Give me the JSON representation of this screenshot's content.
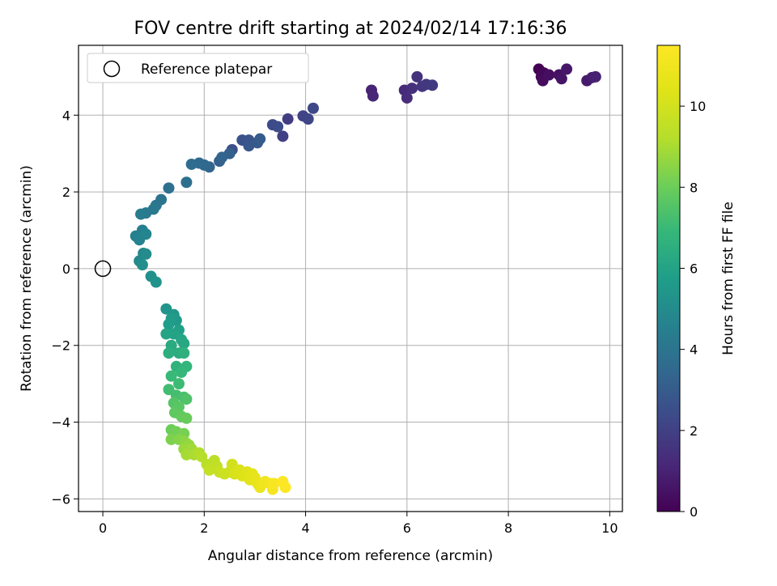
{
  "chart_data": {
    "type": "scatter",
    "title": "FOV centre drift starting at 2024/02/14 17:16:36",
    "xlabel": "Angular distance from reference (arcmin)",
    "ylabel": "Rotation from reference (arcmin)",
    "xlim": [
      -0.48,
      10.25
    ],
    "ylim": [
      -6.33,
      5.82
    ],
    "xticks": [
      0,
      2,
      4,
      6,
      8,
      10
    ],
    "yticks": [
      -6,
      -4,
      -2,
      0,
      2,
      4
    ],
    "grid": true,
    "legend": {
      "placement": "top-left",
      "entries": [
        "Reference platepar"
      ]
    },
    "reference_point": {
      "x": 0,
      "y": 0
    },
    "colorbar": {
      "label": "Hours from first FF file",
      "range": [
        0,
        11.5
      ],
      "ticks": [
        0,
        2,
        4,
        6,
        8,
        10
      ],
      "colormap": "viridis"
    },
    "series": [
      {
        "points": [
          [
            8.6,
            5.2
          ],
          [
            8.65,
            5.0
          ],
          [
            8.7,
            5.1
          ],
          [
            8.68,
            4.9
          ],
          [
            8.8,
            5.05
          ],
          [
            9.0,
            5.05
          ],
          [
            9.05,
            4.95
          ],
          [
            9.15,
            5.2
          ],
          [
            9.55,
            4.9
          ],
          [
            9.65,
            4.98
          ],
          [
            9.72,
            5.0
          ],
          [
            5.3,
            4.65
          ],
          [
            5.33,
            4.5
          ],
          [
            5.95,
            4.65
          ],
          [
            6.0,
            4.45
          ],
          [
            6.1,
            4.7
          ],
          [
            6.2,
            5.0
          ],
          [
            6.3,
            4.75
          ],
          [
            6.38,
            4.8
          ],
          [
            6.5,
            4.78
          ],
          [
            3.65,
            3.9
          ],
          [
            3.55,
            3.45
          ],
          [
            3.95,
            3.98
          ],
          [
            4.05,
            3.9
          ],
          [
            4.15,
            4.18
          ],
          [
            3.35,
            3.75
          ],
          [
            3.45,
            3.7
          ],
          [
            2.55,
            3.1
          ],
          [
            2.75,
            3.35
          ],
          [
            2.88,
            3.35
          ],
          [
            2.88,
            3.2
          ],
          [
            3.05,
            3.28
          ],
          [
            3.1,
            3.38
          ],
          [
            2.5,
            3.0
          ],
          [
            2.3,
            2.8
          ],
          [
            2.35,
            2.9
          ],
          [
            2.1,
            2.65
          ],
          [
            2.0,
            2.7
          ],
          [
            1.9,
            2.75
          ],
          [
            1.75,
            2.72
          ],
          [
            1.65,
            2.25
          ],
          [
            1.3,
            2.1
          ],
          [
            1.15,
            1.8
          ],
          [
            1.05,
            1.65
          ],
          [
            1.0,
            1.55
          ],
          [
            0.85,
            1.45
          ],
          [
            0.75,
            1.42
          ],
          [
            0.78,
            1.0
          ],
          [
            0.65,
            0.85
          ],
          [
            0.72,
            0.75
          ],
          [
            0.85,
            0.9
          ],
          [
            0.8,
            0.4
          ],
          [
            0.72,
            0.2
          ],
          [
            0.85,
            0.38
          ],
          [
            0.78,
            0.1
          ],
          [
            0.95,
            -0.2
          ],
          [
            1.05,
            -0.35
          ],
          [
            1.25,
            -1.05
          ],
          [
            1.4,
            -1.2
          ],
          [
            1.45,
            -1.35
          ],
          [
            1.35,
            -1.3
          ],
          [
            1.3,
            -1.45
          ],
          [
            1.5,
            -1.6
          ],
          [
            1.4,
            -1.7
          ],
          [
            1.25,
            -1.7
          ],
          [
            1.55,
            -1.85
          ],
          [
            1.6,
            -1.95
          ],
          [
            1.35,
            -2.0
          ],
          [
            1.5,
            -2.2
          ],
          [
            1.3,
            -2.2
          ],
          [
            1.6,
            -2.2
          ],
          [
            1.45,
            -2.55
          ],
          [
            1.65,
            -2.55
          ],
          [
            1.55,
            -2.7
          ],
          [
            1.35,
            -2.8
          ],
          [
            1.5,
            -3.0
          ],
          [
            1.3,
            -3.15
          ],
          [
            1.45,
            -3.3
          ],
          [
            1.6,
            -3.35
          ],
          [
            1.65,
            -3.4
          ],
          [
            1.4,
            -3.5
          ],
          [
            1.5,
            -3.6
          ],
          [
            1.42,
            -3.75
          ],
          [
            1.55,
            -3.85
          ],
          [
            1.65,
            -3.9
          ],
          [
            1.35,
            -4.2
          ],
          [
            1.45,
            -4.25
          ],
          [
            1.6,
            -4.3
          ],
          [
            1.35,
            -4.45
          ],
          [
            1.5,
            -4.45
          ],
          [
            1.6,
            -4.5
          ],
          [
            1.65,
            -4.55
          ],
          [
            1.7,
            -4.6
          ],
          [
            1.6,
            -4.7
          ],
          [
            1.75,
            -4.7
          ],
          [
            1.65,
            -4.85
          ],
          [
            1.8,
            -4.85
          ],
          [
            1.9,
            -4.8
          ],
          [
            1.95,
            -4.9
          ],
          [
            2.05,
            -5.1
          ],
          [
            2.2,
            -5.0
          ],
          [
            2.25,
            -5.15
          ],
          [
            2.1,
            -5.25
          ],
          [
            2.3,
            -5.3
          ],
          [
            2.4,
            -5.35
          ],
          [
            2.5,
            -5.3
          ],
          [
            2.55,
            -5.1
          ],
          [
            2.6,
            -5.35
          ],
          [
            2.7,
            -5.25
          ],
          [
            2.75,
            -5.4
          ],
          [
            2.85,
            -5.3
          ],
          [
            2.9,
            -5.5
          ],
          [
            2.95,
            -5.35
          ],
          [
            3.0,
            -5.45
          ],
          [
            3.05,
            -5.6
          ],
          [
            3.1,
            -5.7
          ],
          [
            3.15,
            -5.6
          ],
          [
            3.2,
            -5.55
          ],
          [
            3.3,
            -5.6
          ],
          [
            3.35,
            -5.75
          ],
          [
            3.38,
            -5.6
          ],
          [
            3.55,
            -5.55
          ],
          [
            3.6,
            -5.7
          ]
        ]
      }
    ]
  }
}
